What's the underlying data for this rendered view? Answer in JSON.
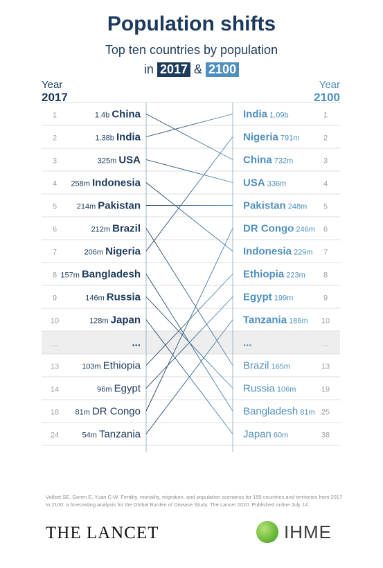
{
  "title": "Population shifts",
  "subtitle": "Top ten countries by population",
  "subtitle_prefix": "in",
  "subtitle_amp": "&",
  "year_word": "Year",
  "chart_data": {
    "type": "table",
    "left_year": "2017",
    "right_year": "2100",
    "gap_marker": "...",
    "colors": {
      "left": "#1c3a5c",
      "right": "#4f8fbf",
      "stripe": "#eeeeee",
      "rule": "#dddddd"
    },
    "left": [
      {
        "rank": "1",
        "value": "1.4b",
        "country": "China",
        "bold": true
      },
      {
        "rank": "2",
        "value": "1.38b",
        "country": "India",
        "bold": true
      },
      {
        "rank": "3",
        "value": "325m",
        "country": "USA",
        "bold": true
      },
      {
        "rank": "4",
        "value": "258m",
        "country": "Indonesia",
        "bold": true
      },
      {
        "rank": "5",
        "value": "214m",
        "country": "Pakistan",
        "bold": true
      },
      {
        "rank": "6",
        "value": "212m",
        "country": "Brazil",
        "bold": true
      },
      {
        "rank": "7",
        "value": "206m",
        "country": "Nigeria",
        "bold": true
      },
      {
        "rank": "8",
        "value": "157m",
        "country": "Bangladesh",
        "bold": true
      },
      {
        "rank": "9",
        "value": "146m",
        "country": "Russia",
        "bold": true
      },
      {
        "rank": "10",
        "value": "128m",
        "country": "Japan",
        "bold": true
      },
      {
        "rank": "...",
        "value": "",
        "country": "...",
        "bold": true,
        "gap": true
      },
      {
        "rank": "13",
        "value": "103m",
        "country": "Ethiopia",
        "bold": false
      },
      {
        "rank": "14",
        "value": "96m",
        "country": "Egypt",
        "bold": false
      },
      {
        "rank": "18",
        "value": "81m",
        "country": "DR Congo",
        "bold": false
      },
      {
        "rank": "24",
        "value": "54m",
        "country": "Tanzania",
        "bold": false
      }
    ],
    "right": [
      {
        "rank": "1",
        "value": "1.09b",
        "country": "India",
        "bold": true
      },
      {
        "rank": "2",
        "value": "791m",
        "country": "Nigeria",
        "bold": true
      },
      {
        "rank": "3",
        "value": "732m",
        "country": "China",
        "bold": true
      },
      {
        "rank": "4",
        "value": "336m",
        "country": "USA",
        "bold": true
      },
      {
        "rank": "5",
        "value": "248m",
        "country": "Pakistan",
        "bold": true
      },
      {
        "rank": "6",
        "value": "246m",
        "country": "DR Congo",
        "bold": true
      },
      {
        "rank": "7",
        "value": "229m",
        "country": "Indonesia",
        "bold": true
      },
      {
        "rank": "8",
        "value": "223m",
        "country": "Ethiopia",
        "bold": true
      },
      {
        "rank": "9",
        "value": "199m",
        "country": "Egypt",
        "bold": true
      },
      {
        "rank": "10",
        "value": "186m",
        "country": "Tanzania",
        "bold": true
      },
      {
        "rank": "...",
        "value": "",
        "country": "...",
        "bold": true,
        "gap": true
      },
      {
        "rank": "13",
        "value": "165m",
        "country": "Brazil",
        "bold": false
      },
      {
        "rank": "19",
        "value": "106m",
        "country": "Russia",
        "bold": false
      },
      {
        "rank": "25",
        "value": "81m",
        "country": "Bangladesh",
        "bold": false
      },
      {
        "rank": "38",
        "value": "60m",
        "country": "Japan",
        "bold": false
      }
    ]
  },
  "source": "Vollset SE, Goren E, Yuan C-W. Fertility, mortality, migration, and population scenarios for 195 countries and territories from 2017 to 2100: a forecasting analysis for the Global Burden of Disease Study. The Lancet 2020. Published online July 14.",
  "logos": {
    "lancet": "THE LANCET",
    "ihme": "IHME"
  }
}
